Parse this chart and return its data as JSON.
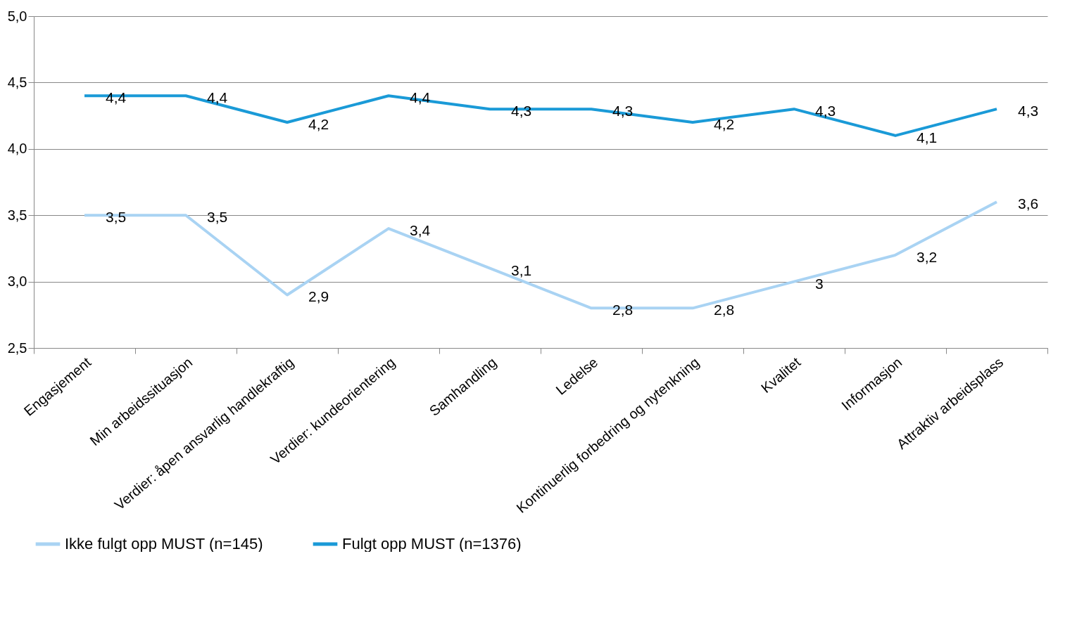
{
  "chart_data": {
    "type": "line",
    "categories": [
      "Engasjement",
      "Min arbeidssituasjon",
      "Verdier: åpen ansvarlig handlekraftig",
      "Verdier: kundeorientering",
      "Samhandling",
      "Ledelse",
      "Kontinuerlig forbedring og nytenkning",
      "Kvalitet",
      "Informasjon",
      "Attraktiv arbeidsplass"
    ],
    "series": [
      {
        "name": "Ikke fulgt opp MUST (n=145)",
        "color": "#a9d3f3",
        "values": [
          3.5,
          3.5,
          2.9,
          3.4,
          3.1,
          2.8,
          2.8,
          3.0,
          3.2,
          3.6
        ],
        "value_labels": [
          "3,5",
          "3,5",
          "2,9",
          "3,4",
          "3,1",
          "2,8",
          "2,8",
          "3",
          "3,2",
          "3,6"
        ]
      },
      {
        "name": "Fulgt opp MUST (n=1376)",
        "color": "#1a9ad7",
        "values": [
          4.4,
          4.4,
          4.2,
          4.4,
          4.3,
          4.3,
          4.2,
          4.3,
          4.1,
          4.3
        ],
        "value_labels": [
          "4,4",
          "4,4",
          "4,2",
          "4,4",
          "4,3",
          "4,3",
          "4,2",
          "4,3",
          "4,1",
          "4,3"
        ]
      }
    ],
    "ylim": [
      2.5,
      5.0
    ],
    "yticks": [
      {
        "value": 2.5,
        "label": "2,5"
      },
      {
        "value": 3.0,
        "label": "3,0"
      },
      {
        "value": 3.5,
        "label": "3,5"
      },
      {
        "value": 4.0,
        "label": "4,0"
      },
      {
        "value": 4.5,
        "label": "4,5"
      },
      {
        "value": 5.0,
        "label": "5,0"
      }
    ],
    "grid": "y",
    "legend": "bottom",
    "line_style": "solid",
    "marker": "none"
  }
}
